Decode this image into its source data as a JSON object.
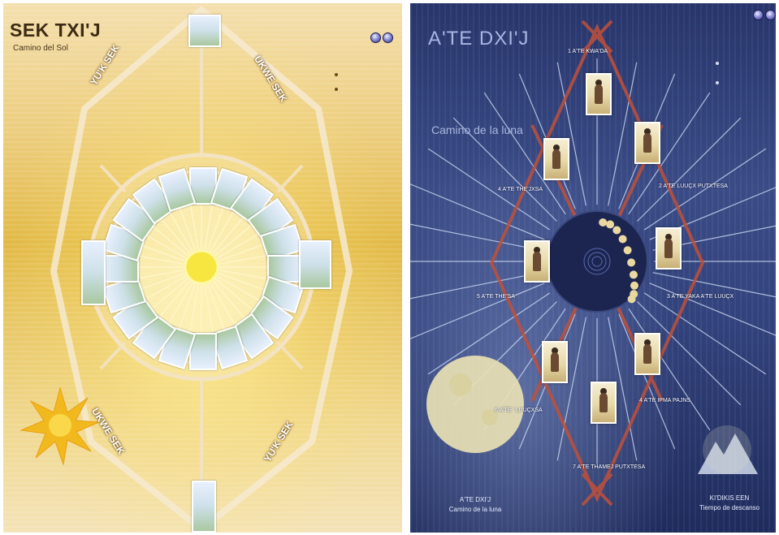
{
  "sun": {
    "title": "SEK TXI'J",
    "subtitle": "Camino del Sol",
    "menu_links": [
      "",
      ""
    ],
    "side_labels": {
      "top_left": "YU'K SEK",
      "top_right": "UKWE SEK",
      "bottom_left": "UKWE SEK",
      "bottom_right": "YU'K SEK"
    },
    "footer": [
      "",
      ""
    ],
    "colors": {
      "sun": "#f8e640",
      "accent": "#e8a014",
      "ring": "#f3e3c2"
    },
    "icons": [
      "nav-sphere-icon",
      "sun-rays-icon",
      "ritual-card-icon"
    ]
  },
  "moon": {
    "title": "A'TE DXI'J",
    "verse": [
      "",
      "",
      ""
    ],
    "subtitle": "Camino de la luna",
    "menu_links": [
      "",
      ""
    ],
    "top_buttons": [
      "",
      ""
    ],
    "nodes": [
      {
        "label": "1 A'TE KWA'DA"
      },
      {
        "label": "2 A'TE LUUÇX PUTXTESA"
      },
      {
        "label": "3 A'TE YAKA A'TE LUUÇX"
      },
      {
        "label": "4 A'TE IPMA PAJNS"
      },
      {
        "label": "7 A'TE THAMEJ PUTXTESA"
      },
      {
        "label": "6 A'TE ' LUUÇXSA"
      },
      {
        "label": "5 A'TE THE'SA"
      },
      {
        "label": "4 A'TE THE'JXSA"
      }
    ],
    "footer_moon": [
      "A'TE DXI'J",
      "Camino de la luna"
    ],
    "footer_rest": [
      "KI'DIKIS EEN",
      "Tiempo de descanso"
    ],
    "colors": {
      "moon": "#e8e0b4",
      "accent": "#c0503a",
      "ray": "#cfdcf5"
    },
    "icons": [
      "nav-sphere-icon",
      "full-moon-icon",
      "moon-phases-icon",
      "mountain-icon"
    ]
  }
}
